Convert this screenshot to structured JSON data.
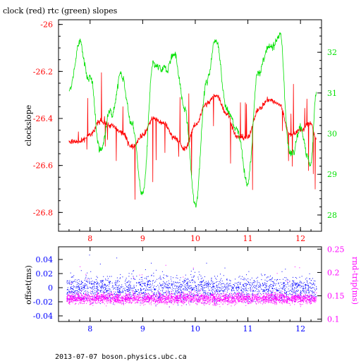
{
  "title": "clock (red) rtc (green) slopes",
  "footer": "2013-07-07  boson.physics.ubc.ca",
  "colors": {
    "clock": "#ff0000",
    "rtc": "#00e000",
    "offset": "#0000ff",
    "rndtrip": "#ff00ff",
    "frame": "#000000"
  },
  "chart_data": [
    {
      "type": "line",
      "title": "clock (red) rtc (green) slopes",
      "ylabel": "clockslope",
      "xlim": [
        7.4,
        12.4
      ],
      "xticks": [
        "8",
        "9",
        "10",
        "11",
        "12"
      ],
      "ylim": [
        -26.88,
        -25.98
      ],
      "yticks": [
        "-26",
        "-26.2",
        "-26.4",
        "-26.6",
        "-26.8"
      ],
      "y2lim": [
        27.6,
        32.8
      ],
      "y2ticks": [
        "28",
        "29",
        "30",
        "31",
        "32"
      ],
      "series": [
        {
          "name": "clock",
          "axis": "left",
          "x": [
            7.6,
            7.8,
            8.0,
            8.2,
            8.4,
            8.6,
            8.8,
            9.0,
            9.2,
            9.4,
            9.6,
            9.8,
            10.0,
            10.2,
            10.4,
            10.6,
            10.8,
            11.0,
            11.2,
            11.4,
            11.6,
            11.8,
            12.0,
            12.2,
            12.3
          ],
          "values": [
            -26.5,
            -26.5,
            -26.47,
            -26.41,
            -26.43,
            -26.46,
            -26.52,
            -26.47,
            -26.4,
            -26.42,
            -26.48,
            -26.53,
            -26.43,
            -26.34,
            -26.3,
            -26.38,
            -26.48,
            -26.48,
            -26.36,
            -26.32,
            -26.34,
            -26.47,
            -26.45,
            -26.42,
            -26.49
          ]
        },
        {
          "name": "rtc",
          "axis": "right",
          "x": [
            7.6,
            7.8,
            8.0,
            8.2,
            8.4,
            8.6,
            8.8,
            9.0,
            9.2,
            9.4,
            9.6,
            9.8,
            10.0,
            10.2,
            10.4,
            10.6,
            10.8,
            11.0,
            11.2,
            11.4,
            11.6,
            11.8,
            12.0,
            12.2,
            12.3
          ],
          "values": [
            31.0,
            32.2,
            31.3,
            29.6,
            30.6,
            31.5,
            30.2,
            28.5,
            31.6,
            31.5,
            32.0,
            30.6,
            28.2,
            31.2,
            32.4,
            30.6,
            30.1,
            28.8,
            31.6,
            32.0,
            32.5,
            29.5,
            30.2,
            29.2,
            31.1
          ]
        }
      ]
    },
    {
      "type": "scatter",
      "ylabel": "offset(ms)",
      "y2label": "rnd-trip(ms)",
      "xlim": [
        7.4,
        12.4
      ],
      "xticks": [
        "8",
        "9",
        "10",
        "11",
        "12"
      ],
      "ylim": [
        -0.048,
        0.058
      ],
      "yticks": [
        "0.04",
        "0.02",
        "0",
        "-0.02",
        "-0.04"
      ],
      "y2lim": [
        0.095,
        0.255
      ],
      "y2ticks": [
        "0.25",
        "0.2",
        "0.15",
        "0.1"
      ],
      "series": [
        {
          "name": "offset",
          "axis": "left",
          "x_range": [
            7.55,
            12.3
          ],
          "y_band": [
            -0.02,
            0.02
          ]
        },
        {
          "name": "rnd-trip",
          "axis": "right",
          "x_range": [
            7.55,
            12.3
          ],
          "y_band": [
            0.13,
            0.16
          ]
        }
      ]
    }
  ]
}
